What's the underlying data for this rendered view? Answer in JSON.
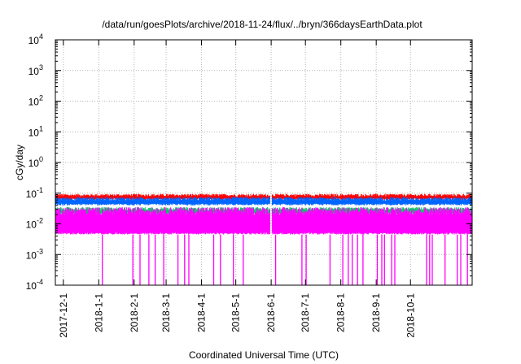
{
  "chart_data": {
    "type": "line",
    "title": "/data/run/goesPlots/archive/2018-11-24/flux/../bryn/366daysEarthData.plot",
    "xlabel": "Coordinated Universal Time (UTC)",
    "ylabel": "cGy/day",
    "yscale": "log",
    "ylim": [
      0.0001,
      10000
    ],
    "y_ticks": [
      {
        "value": 0.0001,
        "base": "10",
        "exp": "-4"
      },
      {
        "value": 0.001,
        "base": "10",
        "exp": "-3"
      },
      {
        "value": 0.01,
        "base": "10",
        "exp": "-2"
      },
      {
        "value": 0.1,
        "base": "10",
        "exp": "-1"
      },
      {
        "value": 1,
        "base": "10",
        "exp": "0"
      },
      {
        "value": 10,
        "base": "10",
        "exp": "1"
      },
      {
        "value": 100,
        "base": "10",
        "exp": "2"
      },
      {
        "value": 1000,
        "base": "10",
        "exp": "3"
      },
      {
        "value": 10000,
        "base": "10",
        "exp": "4"
      }
    ],
    "xlim": [
      "2017-11-24",
      "2018-11-24"
    ],
    "x_ticks": [
      {
        "date": "2017-12-01",
        "label": "2017-12-1"
      },
      {
        "date": "2018-01-01",
        "label": "2018-1-1"
      },
      {
        "date": "2018-02-01",
        "label": "2018-2-1"
      },
      {
        "date": "2018-03-01",
        "label": "2018-3-1"
      },
      {
        "date": "2018-04-01",
        "label": "2018-4-1"
      },
      {
        "date": "2018-05-01",
        "label": "2018-5-1"
      },
      {
        "date": "2018-06-01",
        "label": "2018-6-1"
      },
      {
        "date": "2018-07-01",
        "label": "2018-7-1"
      },
      {
        "date": "2018-08-01",
        "label": "2018-8-1"
      },
      {
        "date": "2018-09-01",
        "label": "2018-9-1"
      },
      {
        "date": "2018-10-01",
        "label": "2018-10-1"
      }
    ],
    "grid": true,
    "legend": "none",
    "series": [
      {
        "color": "#ff0000",
        "y_range": [
          0.06,
          0.095
        ]
      },
      {
        "color": "#0066ff",
        "y_range": [
          0.04,
          0.075
        ]
      },
      {
        "color": "#00cc66",
        "y_range": [
          0.02,
          0.035
        ]
      },
      {
        "color": "#ff00ff",
        "y_range": [
          0.0045,
          0.035
        ],
        "dips_to": 0.0001
      }
    ],
    "gap_date": "2018-06-01"
  }
}
